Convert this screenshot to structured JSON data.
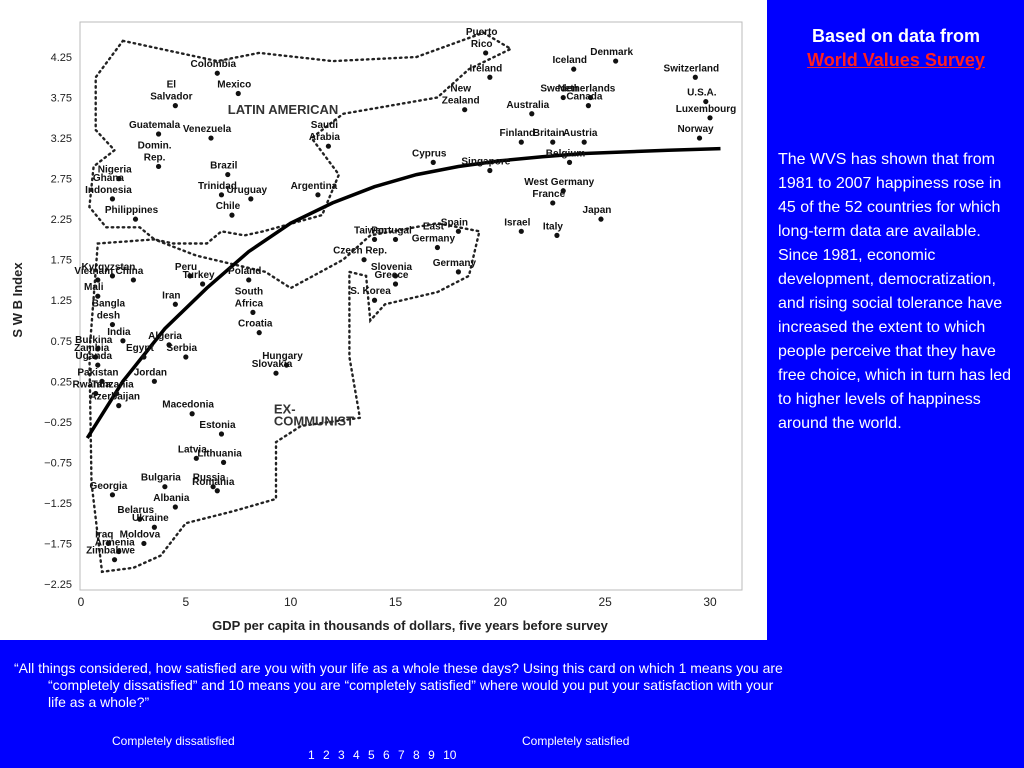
{
  "chart_data": {
    "type": "scatter",
    "title": "",
    "xlabel": "GDP per capita in thousands of dollars, five years before survey",
    "ylabel": "S W B  Index",
    "xlim": [
      0,
      31
    ],
    "ylim": [
      -2.25,
      4.6
    ],
    "x_ticks": [
      "0",
      "5",
      "10",
      "15",
      "20",
      "25",
      "30"
    ],
    "y_ticks": [
      "4.25",
      "3.75",
      "3.25",
      "2.75",
      "2.25",
      "1.75",
      "1.25",
      "0.75",
      "0.25",
      "−0.25",
      "−0.75",
      "−1.25",
      "−1.75",
      "−2.25"
    ],
    "grid": false,
    "regions": [
      "LATIN AMERICAN",
      "EX-\nCOMMUNIST"
    ],
    "points": [
      {
        "label": "Puerto\nRico",
        "x": 19.3,
        "y": 4.3
      },
      {
        "label": "Ireland",
        "x": 19.5,
        "y": 4.0
      },
      {
        "label": "Iceland",
        "x": 23.5,
        "y": 4.1
      },
      {
        "label": "Denmark",
        "x": 25.5,
        "y": 4.2
      },
      {
        "label": "Switzerland",
        "x": 29.3,
        "y": 4.0
      },
      {
        "label": "U.S.A.",
        "x": 29.8,
        "y": 3.7
      },
      {
        "label": "Luxembourg",
        "x": 30.0,
        "y": 3.5
      },
      {
        "label": "Norway",
        "x": 29.5,
        "y": 3.25
      },
      {
        "label": "Sweden",
        "x": 23.0,
        "y": 3.75
      },
      {
        "label": "Netherlands",
        "x": 24.3,
        "y": 3.75
      },
      {
        "label": "Canada",
        "x": 24.2,
        "y": 3.65
      },
      {
        "label": "New\nZealand",
        "x": 18.3,
        "y": 3.6
      },
      {
        "label": "Australia",
        "x": 21.5,
        "y": 3.55
      },
      {
        "label": "Finland",
        "x": 21.0,
        "y": 3.2
      },
      {
        "label": "Britain",
        "x": 22.5,
        "y": 3.2
      },
      {
        "label": "Austria",
        "x": 24.0,
        "y": 3.2
      },
      {
        "label": "Cyprus",
        "x": 16.8,
        "y": 2.95
      },
      {
        "label": "Belgium",
        "x": 23.3,
        "y": 2.95
      },
      {
        "label": "Singapore",
        "x": 19.5,
        "y": 2.85
      },
      {
        "label": "West Germany",
        "x": 23.0,
        "y": 2.6
      },
      {
        "label": "France",
        "x": 22.5,
        "y": 2.45
      },
      {
        "label": "Japan",
        "x": 24.8,
        "y": 2.25
      },
      {
        "label": "Israel",
        "x": 21.0,
        "y": 2.1
      },
      {
        "label": "Italy",
        "x": 22.7,
        "y": 2.05
      },
      {
        "label": "Spain",
        "x": 18.0,
        "y": 2.1
      },
      {
        "label": "Portugal",
        "x": 15.0,
        "y": 2.0
      },
      {
        "label": "Taiwan",
        "x": 14.0,
        "y": 2.0
      },
      {
        "label": "East\nGermany",
        "x": 17.0,
        "y": 1.9
      },
      {
        "label": "Germany",
        "x": 18.0,
        "y": 1.6
      },
      {
        "label": "Czech Rep.",
        "x": 13.5,
        "y": 1.75
      },
      {
        "label": "Slovenia",
        "x": 15.0,
        "y": 1.55
      },
      {
        "label": "Greece",
        "x": 15.0,
        "y": 1.45
      },
      {
        "label": "S. Korea",
        "x": 14.0,
        "y": 1.25
      },
      {
        "label": "Saudi\nArabia",
        "x": 11.8,
        "y": 3.15
      },
      {
        "label": "Colombia",
        "x": 6.5,
        "y": 4.05
      },
      {
        "label": "Mexico",
        "x": 7.5,
        "y": 3.8
      },
      {
        "label": "El\nSalvador",
        "x": 4.5,
        "y": 3.65
      },
      {
        "label": "Venezuela",
        "x": 6.2,
        "y": 3.25
      },
      {
        "label": "Guatemala",
        "x": 3.7,
        "y": 3.3
      },
      {
        "label": "Domin.\nRep.",
        "x": 3.7,
        "y": 2.9
      },
      {
        "label": "Brazil",
        "x": 7.0,
        "y": 2.8
      },
      {
        "label": "Argentina",
        "x": 11.3,
        "y": 2.55
      },
      {
        "label": "Trinidad",
        "x": 6.7,
        "y": 2.55
      },
      {
        "label": "Uruguay",
        "x": 8.1,
        "y": 2.5
      },
      {
        "label": "Chile",
        "x": 7.2,
        "y": 2.3
      },
      {
        "label": "Nigeria",
        "x": 1.8,
        "y": 2.75
      },
      {
        "label": "Ghana\nIndonesia",
        "x": 1.5,
        "y": 2.5
      },
      {
        "label": "Philippines",
        "x": 2.6,
        "y": 2.25
      },
      {
        "label": "Vietnam",
        "x": 0.8,
        "y": 1.5
      },
      {
        "label": "China",
        "x": 2.5,
        "y": 1.5
      },
      {
        "label": "Peru",
        "x": 5.2,
        "y": 1.55
      },
      {
        "label": "Kyrgyzstan",
        "x": 1.5,
        "y": 1.55
      },
      {
        "label": "Iran",
        "x": 4.5,
        "y": 1.2
      },
      {
        "label": "Turkey",
        "x": 5.8,
        "y": 1.45
      },
      {
        "label": "Mali",
        "x": 0.8,
        "y": 1.3
      },
      {
        "label": "Bangla\ndesh",
        "x": 1.5,
        "y": 0.95
      },
      {
        "label": "Poland",
        "x": 8.0,
        "y": 1.5
      },
      {
        "label": "South\nAfrica",
        "x": 8.2,
        "y": 1.1
      },
      {
        "label": "Croatia",
        "x": 8.5,
        "y": 0.85
      },
      {
        "label": "India",
        "x": 2.0,
        "y": 0.75
      },
      {
        "label": "Algeria",
        "x": 4.2,
        "y": 0.7
      },
      {
        "label": "Burkina",
        "x": 0.8,
        "y": 0.65
      },
      {
        "label": "Zambia",
        "x": 0.7,
        "y": 0.55
      },
      {
        "label": "Egypt",
        "x": 3.0,
        "y": 0.55
      },
      {
        "label": "Serbia",
        "x": 5.0,
        "y": 0.55
      },
      {
        "label": "Hungary",
        "x": 9.8,
        "y": 0.45
      },
      {
        "label": "Uganda",
        "x": 0.8,
        "y": 0.45
      },
      {
        "label": "Pakistan",
        "x": 1.0,
        "y": 0.25
      },
      {
        "label": "Jordan",
        "x": 3.5,
        "y": 0.25
      },
      {
        "label": "Slovakia",
        "x": 9.3,
        "y": 0.35
      },
      {
        "label": "Tanzania",
        "x": 1.7,
        "y": 0.1
      },
      {
        "label": "Rwanda",
        "x": 0.7,
        "y": 0.1
      },
      {
        "label": "Macedonia",
        "x": 5.3,
        "y": -0.15
      },
      {
        "label": "Azerbaijan",
        "x": 1.8,
        "y": -0.05
      },
      {
        "label": "Estonia",
        "x": 6.7,
        "y": -0.4
      },
      {
        "label": "Latvia",
        "x": 5.5,
        "y": -0.7
      },
      {
        "label": "Lithuania",
        "x": 6.8,
        "y": -0.75
      },
      {
        "label": "Georgia",
        "x": 1.5,
        "y": -1.15
      },
      {
        "label": "Bulgaria",
        "x": 4.0,
        "y": -1.05
      },
      {
        "label": "Russia",
        "x": 6.3,
        "y": -1.05
      },
      {
        "label": "Romania",
        "x": 6.5,
        "y": -1.1
      },
      {
        "label": "Albania",
        "x": 4.5,
        "y": -1.3
      },
      {
        "label": "Belarus",
        "x": 2.8,
        "y": -1.45
      },
      {
        "label": "Ukraine",
        "x": 3.5,
        "y": -1.55
      },
      {
        "label": "Moldova",
        "x": 3.0,
        "y": -1.75
      },
      {
        "label": "Iraq",
        "x": 1.3,
        "y": -1.75
      },
      {
        "label": "Armenia",
        "x": 1.8,
        "y": -1.85
      },
      {
        "label": "Zimbabwe",
        "x": 1.6,
        "y": -1.95
      }
    ]
  },
  "side": {
    "heading": "Based on data from",
    "link": "World Values Survey",
    "body": "The WVS has shown that from 1981 to 2007 happiness rose in 45 of the 52 countries for which long-term data are available. Since 1981, economic development, democratization, and rising social tolerance have increased the extent to which people perceive that they have free choice, which in turn has led to higher levels of happiness around the world."
  },
  "footer": {
    "question": "“All things considered, how satisfied are you with your life as a whole these days? Using this card on which 1 means you are “completely dissatisfied” and 10 means you are “completely satisfied” where would you put your satisfaction with your life as a whole?”",
    "scale_left": "Completely dissatisfied",
    "scale_right": "Completely satisfied",
    "scale_numbers": "1 2 3 4 5 6 7 8 9 10"
  }
}
